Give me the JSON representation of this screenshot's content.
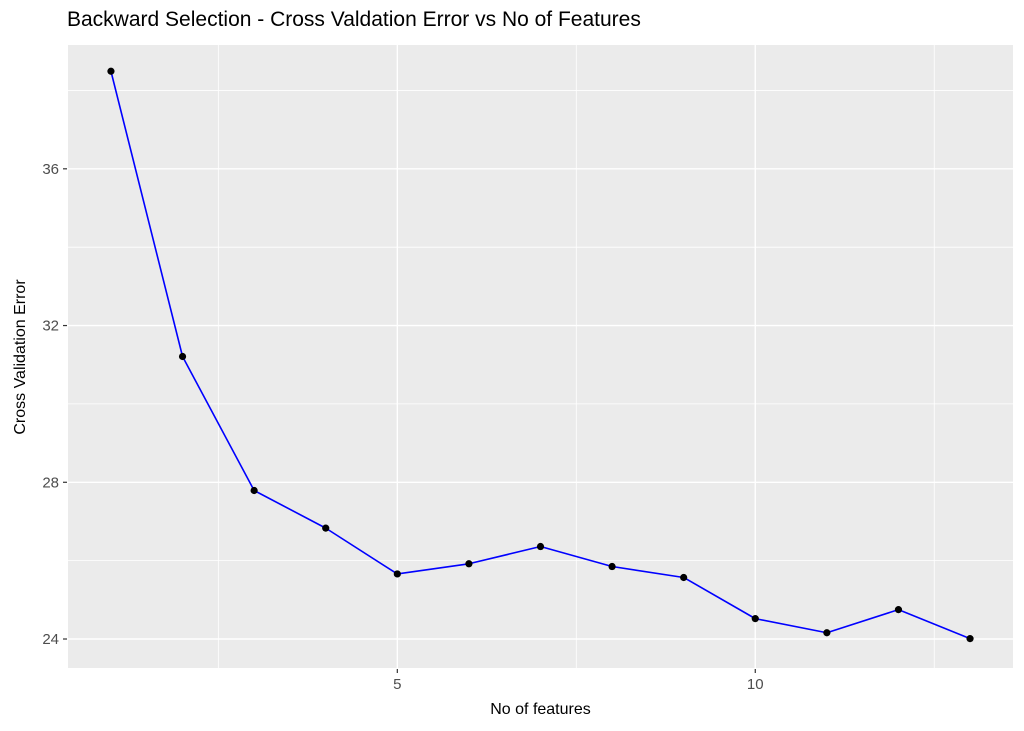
{
  "chart_data": {
    "type": "line",
    "title": "Backward Selection - Cross Valdation Error vs No of Features",
    "xlabel": "No of features",
    "ylabel": "Cross Validation Error",
    "x": [
      1,
      2,
      3,
      4,
      5,
      6,
      7,
      8,
      9,
      10,
      11,
      12,
      13
    ],
    "series": [
      {
        "name": "cross-validation-error",
        "values": [
          38.49,
          31.21,
          27.79,
          26.83,
          25.66,
          25.92,
          26.36,
          25.85,
          25.57,
          24.52,
          24.16,
          24.75,
          24.01
        ]
      }
    ],
    "xlim": [
      0.4,
      13.6
    ],
    "ylim": [
      23.26,
      39.16
    ],
    "x_major_ticks": [
      5,
      10
    ],
    "x_tick_labels": [
      "5",
      "10"
    ],
    "x_minor_gridlines": [
      2.5,
      7.5,
      12.5
    ],
    "y_major_ticks": [
      24,
      28,
      32,
      36
    ],
    "y_tick_labels": [
      "24",
      "28",
      "32",
      "36"
    ],
    "y_minor_gridlines": [
      26,
      30,
      34,
      38
    ],
    "grid": "on",
    "legend_position": "none",
    "style": "ggplot2",
    "colors": {
      "line": "#0000FF",
      "point": "#000000",
      "panel_background": "#EBEBEB",
      "gridline": "#FFFFFF",
      "tick_mark": "#333333",
      "tick_label": "#4D4D4D",
      "title_text": "#000000",
      "figure_background": "#FFFFFF"
    }
  }
}
